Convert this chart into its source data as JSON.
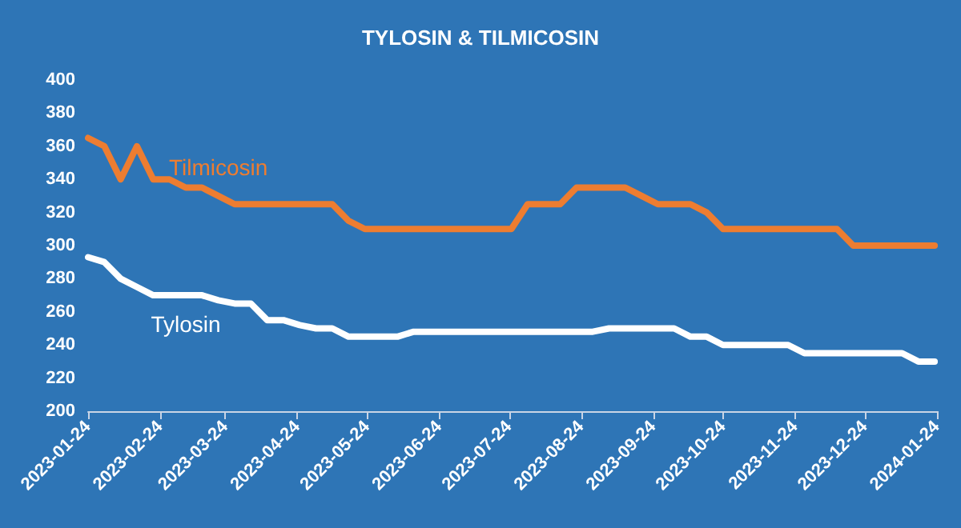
{
  "chart_data": {
    "type": "line",
    "title": "TYLOSIN & TILMICOSIN",
    "x": [
      "2023-01-24",
      "2023-01-31",
      "2023-02-07",
      "2023-02-14",
      "2023-02-21",
      "2023-02-28",
      "2023-03-07",
      "2023-03-14",
      "2023-03-21",
      "2023-03-28",
      "2023-04-04",
      "2023-04-11",
      "2023-04-18",
      "2023-04-25",
      "2023-05-02",
      "2023-05-09",
      "2023-05-16",
      "2023-05-23",
      "2023-05-30",
      "2023-06-06",
      "2023-06-13",
      "2023-06-20",
      "2023-06-27",
      "2023-07-04",
      "2023-07-11",
      "2023-07-18",
      "2023-07-25",
      "2023-08-01",
      "2023-08-08",
      "2023-08-15",
      "2023-08-22",
      "2023-08-29",
      "2023-09-05",
      "2023-09-12",
      "2023-09-19",
      "2023-09-26",
      "2023-10-03",
      "2023-10-10",
      "2023-10-17",
      "2023-10-24",
      "2023-10-31",
      "2023-11-07",
      "2023-11-14",
      "2023-11-21",
      "2023-11-28",
      "2023-12-05",
      "2023-12-12",
      "2023-12-19",
      "2023-12-26",
      "2024-01-02",
      "2024-01-09",
      "2024-01-16",
      "2024-01-23"
    ],
    "series": [
      {
        "name": "Tilmicosin",
        "color": "#ed7d31",
        "values": [
          365,
          360,
          340,
          360,
          340,
          340,
          335,
          335,
          330,
          325,
          325,
          325,
          325,
          325,
          325,
          325,
          315,
          310,
          310,
          310,
          310,
          310,
          310,
          310,
          310,
          310,
          310,
          325,
          325,
          325,
          335,
          335,
          335,
          335,
          330,
          325,
          325,
          325,
          320,
          310,
          310,
          310,
          310,
          310,
          310,
          310,
          310,
          300,
          300,
          300,
          300,
          300,
          300
        ]
      },
      {
        "name": "Tylosin",
        "color": "#ffffff",
        "values": [
          293,
          290,
          280,
          275,
          270,
          270,
          270,
          270,
          267,
          265,
          265,
          255,
          255,
          252,
          250,
          250,
          245,
          245,
          245,
          245,
          248,
          248,
          248,
          248,
          248,
          248,
          248,
          248,
          248,
          248,
          248,
          248,
          250,
          250,
          250,
          250,
          250,
          245,
          245,
          240,
          240,
          240,
          240,
          240,
          235,
          235,
          235,
          235,
          235,
          235,
          235,
          230,
          230
        ]
      }
    ],
    "xlim": [
      "2023-01-24",
      "2024-01-24"
    ],
    "xticks": [
      "2023-01-24",
      "2023-02-24",
      "2023-03-24",
      "2023-04-24",
      "2023-05-24",
      "2023-06-24",
      "2023-07-24",
      "2023-08-24",
      "2023-09-24",
      "2023-10-24",
      "2023-11-24",
      "2023-12-24",
      "2024-01-24"
    ],
    "ylim": [
      200,
      400
    ],
    "yticks": [
      200,
      220,
      240,
      260,
      280,
      300,
      320,
      340,
      360,
      380,
      400
    ],
    "grid": false,
    "legend": false,
    "marker": "none",
    "line_style": "solid"
  }
}
